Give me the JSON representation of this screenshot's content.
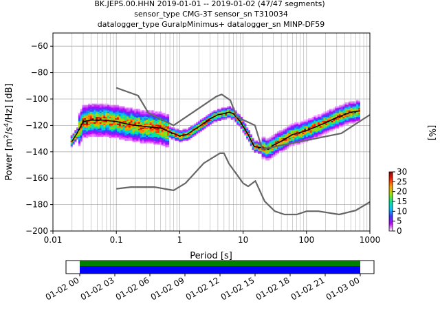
{
  "title_lines": [
    "BK.JEPS.00.HHN   2019-01-01 -- 2019-01-02  (47/47 segments)",
    "sensor_type CMG-3T sensor_sn T310034",
    "datalogger_type GuralpMinimus+ datalogger_sn MINP-DF59"
  ],
  "chart_data": {
    "type": "heatmap",
    "x_scale": "log",
    "xlim": [
      0.01,
      1000
    ],
    "ylim": [
      -200,
      -50
    ],
    "xlabel": "Period [s]",
    "ylabel_parts": [
      "Power [m",
      "2",
      "/s",
      "4",
      "/Hz] [dB]"
    ],
    "x_ticks": [
      {
        "value": 0.01,
        "label": "0.01"
      },
      {
        "value": 0.1,
        "label": "0.1"
      },
      {
        "value": 1,
        "label": "1"
      },
      {
        "value": 10,
        "label": "10"
      },
      {
        "value": 100,
        "label": "100"
      },
      {
        "value": 1000,
        "label": "1000"
      }
    ],
    "y_ticks": [
      -60,
      -80,
      -100,
      -120,
      -140,
      -160,
      -180,
      -200
    ],
    "grid": true,
    "colorbar": {
      "label": "[%]",
      "range": [
        0,
        30
      ],
      "ticks": [
        0,
        5,
        10,
        15,
        20,
        25,
        30
      ],
      "colors": [
        "#ffffff",
        "#c000ff",
        "#3a3aff",
        "#00c8ff",
        "#00e890",
        "#a0e000",
        "#ffa000",
        "#ff2000",
        "#8b0000"
      ]
    },
    "series": [
      {
        "role": "mean",
        "color": "#000000",
        "points": [
          [
            0.02,
            -132
          ],
          [
            0.024,
            -126
          ],
          [
            0.03,
            -117
          ],
          [
            0.04,
            -116
          ],
          [
            0.06,
            -116
          ],
          [
            0.1,
            -117
          ],
          [
            0.15,
            -119
          ],
          [
            0.2,
            -120
          ],
          [
            0.3,
            -121
          ],
          [
            0.5,
            -122
          ],
          [
            0.7,
            -125
          ],
          [
            1.0,
            -128
          ],
          [
            1.3,
            -127
          ],
          [
            2,
            -121
          ],
          [
            3,
            -115
          ],
          [
            4,
            -112
          ],
          [
            5,
            -111
          ],
          [
            6,
            -110
          ],
          [
            7,
            -111
          ],
          [
            9,
            -117
          ],
          [
            12,
            -127
          ],
          [
            15,
            -136
          ],
          [
            20,
            -137
          ],
          [
            25,
            -138
          ],
          [
            30,
            -135
          ],
          [
            40,
            -132
          ],
          [
            60,
            -127
          ],
          [
            100,
            -124
          ],
          [
            200,
            -118
          ],
          [
            300,
            -114
          ],
          [
            500,
            -110
          ],
          [
            700,
            -109
          ]
        ]
      },
      {
        "role": "nlnm",
        "color": "#666666",
        "points": [
          [
            0.1,
            -168
          ],
          [
            0.17,
            -166.7
          ],
          [
            0.4,
            -166.7
          ],
          [
            0.8,
            -169.2
          ],
          [
            1.24,
            -163.7
          ],
          [
            2.4,
            -148.6
          ],
          [
            4.3,
            -141.1
          ],
          [
            5,
            -141.1
          ],
          [
            6,
            -149
          ],
          [
            10,
            -163.8
          ],
          [
            12,
            -166.2
          ],
          [
            15.6,
            -162.1
          ],
          [
            21.9,
            -177.5
          ],
          [
            31.6,
            -185
          ],
          [
            45,
            -187.5
          ],
          [
            70,
            -187.5
          ],
          [
            101,
            -185
          ],
          [
            154,
            -185
          ],
          [
            328,
            -187.5
          ],
          [
            600,
            -184.4
          ],
          [
            1000,
            -178
          ]
        ]
      },
      {
        "role": "nhnm",
        "color": "#666666",
        "points": [
          [
            0.1,
            -91.5
          ],
          [
            0.22,
            -97.4
          ],
          [
            0.32,
            -110.5
          ],
          [
            0.8,
            -120
          ],
          [
            3.8,
            -98
          ],
          [
            4.6,
            -96.5
          ],
          [
            6.3,
            -101
          ],
          [
            7.9,
            -113.5
          ],
          [
            15.4,
            -120
          ],
          [
            20,
            -138
          ],
          [
            354.8,
            -126
          ],
          [
            1000,
            -112
          ]
        ]
      }
    ]
  },
  "time_axis": {
    "labels": [
      "01-02 00",
      "01-02 03",
      "01-02 06",
      "01-02 09",
      "01-02 12",
      "01-02 15",
      "01-02 18",
      "01-02 21",
      "01-03 00"
    ],
    "bar_colors": {
      "top": "#008000",
      "bottom": "#0000ff"
    }
  }
}
